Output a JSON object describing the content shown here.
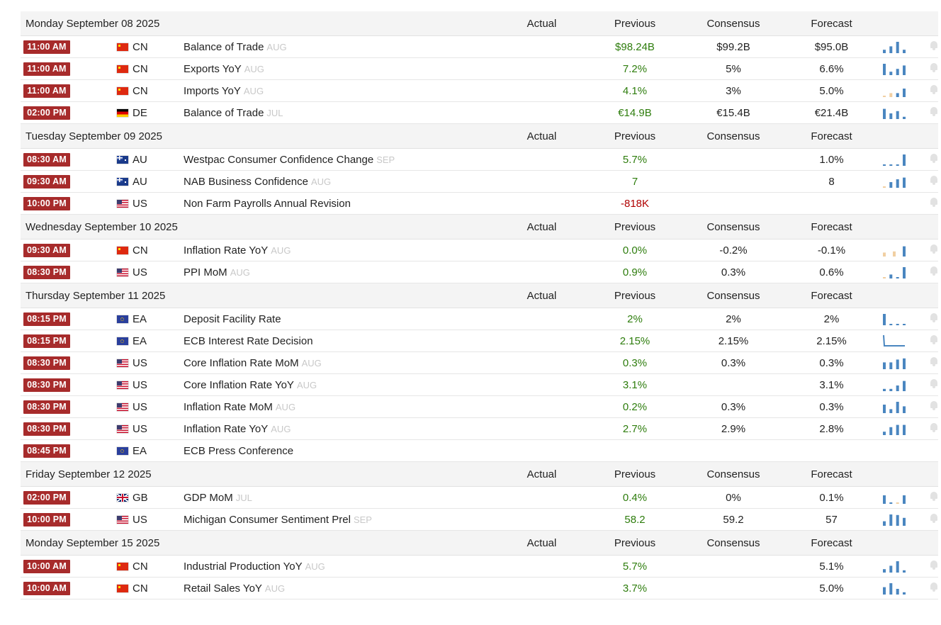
{
  "columns": {
    "actual": "Actual",
    "previous": "Previous",
    "consensus": "Consensus",
    "forecast": "Forecast"
  },
  "colors": {
    "time_badge": "#a72b2b",
    "positive": "#2e7d0d",
    "negative": "#b00000",
    "bar": "#4a86c0",
    "bar_light": "#f1cfa2"
  },
  "days": [
    {
      "date": "Monday September 08 2025",
      "events": [
        {
          "time": "11:00 AM",
          "country": "CN",
          "event": "Balance of Trade",
          "ref": "AUG",
          "actual": "",
          "previous": "$98.24B",
          "previous_tone": "green",
          "consensus": "$99.2B",
          "forecast": "$95.0B",
          "spark": [
            0.3,
            0.6,
            1.0,
            0.3
          ],
          "spark_tone": [
            0,
            0,
            0,
            0
          ],
          "bell": true
        },
        {
          "time": "11:00 AM",
          "country": "CN",
          "event": "Exports YoY",
          "ref": "AUG",
          "actual": "",
          "previous": "7.2%",
          "previous_tone": "green",
          "consensus": "5%",
          "forecast": "6.6%",
          "spark": [
            1.0,
            0.3,
            0.55,
            0.85
          ],
          "spark_tone": [
            0,
            0,
            0,
            0
          ],
          "bell": true
        },
        {
          "time": "11:00 AM",
          "country": "CN",
          "event": "Imports YoY",
          "ref": "AUG",
          "actual": "",
          "previous": "4.1%",
          "previous_tone": "green",
          "consensus": "3%",
          "forecast": "5.0%",
          "spark": [
            0.12,
            0.35,
            0.35,
            0.75
          ],
          "spark_tone": [
            1,
            1,
            0,
            0
          ],
          "bell": true
        },
        {
          "time": "02:00 PM",
          "country": "DE",
          "event": "Balance of Trade",
          "ref": "JUL",
          "actual": "",
          "previous": "€14.9B",
          "previous_tone": "green",
          "consensus": "€15.4B",
          "forecast": "€21.4B",
          "spark": [
            0.9,
            0.5,
            0.7,
            0.2
          ],
          "spark_tone": [
            0,
            0,
            0,
            0
          ],
          "bell": true
        }
      ]
    },
    {
      "date": "Tuesday September 09 2025",
      "events": [
        {
          "time": "08:30 AM",
          "country": "AU",
          "event": "Westpac Consumer Confidence Change",
          "ref": "SEP",
          "actual": "",
          "previous": "5.7%",
          "previous_tone": "green",
          "consensus": "",
          "forecast": "1.0%",
          "spark": [
            0.12,
            0.12,
            0.12,
            1.0
          ],
          "spark_tone": [
            0,
            0,
            0,
            0
          ],
          "bell": true
        },
        {
          "time": "09:30 AM",
          "country": "AU",
          "event": "NAB Business Confidence",
          "ref": "AUG",
          "actual": "",
          "previous": "7",
          "previous_tone": "green",
          "consensus": "",
          "forecast": "8",
          "spark": [
            0.12,
            0.5,
            0.75,
            0.9
          ],
          "spark_tone": [
            1,
            0,
            0,
            0
          ],
          "bell": true
        },
        {
          "time": "10:00 PM",
          "country": "US",
          "event": "Non Farm Payrolls Annual Revision",
          "ref": "",
          "actual": "",
          "previous": "-818K",
          "previous_tone": "red",
          "consensus": "",
          "forecast": "",
          "spark": [],
          "spark_tone": [],
          "bell": true
        }
      ]
    },
    {
      "date": "Wednesday September 10 2025",
      "events": [
        {
          "time": "09:30 AM",
          "country": "CN",
          "event": "Inflation Rate YoY",
          "ref": "AUG",
          "actual": "",
          "previous": "0.0%",
          "previous_tone": "green",
          "consensus": "-0.2%",
          "forecast": "-0.1%",
          "spark": [
            0.35,
            0.45,
            0.9
          ],
          "spark_tone": [
            1,
            1,
            0
          ],
          "bell": true
        },
        {
          "time": "08:30 PM",
          "country": "US",
          "event": "PPI MoM",
          "ref": "AUG",
          "actual": "",
          "previous": "0.9%",
          "previous_tone": "green",
          "consensus": "0.3%",
          "forecast": "0.6%",
          "spark": [
            0.12,
            0.35,
            0.12,
            1.0
          ],
          "spark_tone": [
            1,
            0,
            0,
            0
          ],
          "bell": true
        }
      ]
    },
    {
      "date": "Thursday September 11 2025",
      "events": [
        {
          "time": "08:15 PM",
          "country": "EA",
          "event": "Deposit Facility Rate",
          "ref": "",
          "actual": "",
          "previous": "2%",
          "previous_tone": "green",
          "consensus": "2%",
          "forecast": "2%",
          "spark": [
            1.0,
            0.12,
            0.12,
            0.12
          ],
          "spark_tone": [
            0,
            0,
            0,
            0
          ],
          "bell": true
        },
        {
          "time": "08:15 PM",
          "country": "EA",
          "event": "ECB Interest Rate Decision",
          "ref": "",
          "actual": "",
          "previous": "2.15%",
          "previous_tone": "green",
          "consensus": "2.15%",
          "forecast": "2.15%",
          "spark": [
            1.0,
            0.12,
            0.12,
            0.12
          ],
          "spark_tone": [
            0,
            0,
            0,
            0
          ],
          "spark_kind": "line",
          "bell": true
        },
        {
          "time": "08:30 PM",
          "country": "US",
          "event": "Core Inflation Rate MoM",
          "ref": "AUG",
          "actual": "",
          "previous": "0.3%",
          "previous_tone": "green",
          "consensus": "0.3%",
          "forecast": "0.3%",
          "spark": [
            0.6,
            0.6,
            0.85,
            0.95
          ],
          "spark_tone": [
            0,
            0,
            0,
            0
          ],
          "bell": true
        },
        {
          "time": "08:30 PM",
          "country": "US",
          "event": "Core Inflation Rate YoY",
          "ref": "AUG",
          "actual": "",
          "previous": "3.1%",
          "previous_tone": "green",
          "consensus": "",
          "forecast": "3.1%",
          "spark": [
            0.2,
            0.2,
            0.5,
            0.9
          ],
          "spark_tone": [
            0,
            0,
            0,
            0
          ],
          "bell": true
        },
        {
          "time": "08:30 PM",
          "country": "US",
          "event": "Inflation Rate MoM",
          "ref": "AUG",
          "actual": "",
          "previous": "0.2%",
          "previous_tone": "green",
          "consensus": "0.3%",
          "forecast": "0.3%",
          "spark": [
            0.75,
            0.35,
            1.0,
            0.6
          ],
          "spark_tone": [
            0,
            0,
            0,
            0
          ],
          "bell": true
        },
        {
          "time": "08:30 PM",
          "country": "US",
          "event": "Inflation Rate YoY",
          "ref": "AUG",
          "actual": "",
          "previous": "2.7%",
          "previous_tone": "green",
          "consensus": "2.9%",
          "forecast": "2.8%",
          "spark": [
            0.3,
            0.7,
            0.9,
            0.9
          ],
          "spark_tone": [
            0,
            0,
            0,
            0
          ],
          "bell": true
        },
        {
          "time": "08:45 PM",
          "country": "EA",
          "event": "ECB Press Conference",
          "ref": "",
          "actual": "",
          "previous": "",
          "previous_tone": "green",
          "consensus": "",
          "forecast": "",
          "spark": [],
          "spark_tone": [],
          "bell": false
        }
      ]
    },
    {
      "date": "Friday September 12 2025",
      "events": [
        {
          "time": "02:00 PM",
          "country": "GB",
          "event": "GDP MoM",
          "ref": "JUL",
          "actual": "",
          "previous": "0.4%",
          "previous_tone": "green",
          "consensus": "0%",
          "forecast": "0.1%",
          "spark": [
            0.75,
            0.12,
            0.12,
            0.75
          ],
          "spark_tone": [
            0,
            0,
            1,
            0
          ],
          "bell": true
        },
        {
          "time": "10:00 PM",
          "country": "US",
          "event": "Michigan Consumer Sentiment Prel",
          "ref": "SEP",
          "actual": "",
          "previous": "58.2",
          "previous_tone": "green",
          "consensus": "59.2",
          "forecast": "57",
          "spark": [
            0.4,
            1.0,
            0.95,
            0.7
          ],
          "spark_tone": [
            0,
            0,
            0,
            0
          ],
          "bell": true
        }
      ]
    },
    {
      "date": "Monday September 15 2025",
      "events": [
        {
          "time": "10:00 AM",
          "country": "CN",
          "event": "Industrial Production YoY",
          "ref": "AUG",
          "actual": "",
          "previous": "5.7%",
          "previous_tone": "green",
          "consensus": "",
          "forecast": "5.1%",
          "spark": [
            0.3,
            0.6,
            1.0,
            0.2
          ],
          "spark_tone": [
            0,
            0,
            0,
            0
          ],
          "bell": true
        },
        {
          "time": "10:00 AM",
          "country": "CN",
          "event": "Retail Sales YoY",
          "ref": "AUG",
          "actual": "",
          "previous": "3.7%",
          "previous_tone": "green",
          "consensus": "",
          "forecast": "5.0%",
          "spark": [
            0.65,
            1.0,
            0.5,
            0.2
          ],
          "spark_tone": [
            0,
            0,
            0,
            0
          ],
          "bell": true
        }
      ]
    }
  ]
}
